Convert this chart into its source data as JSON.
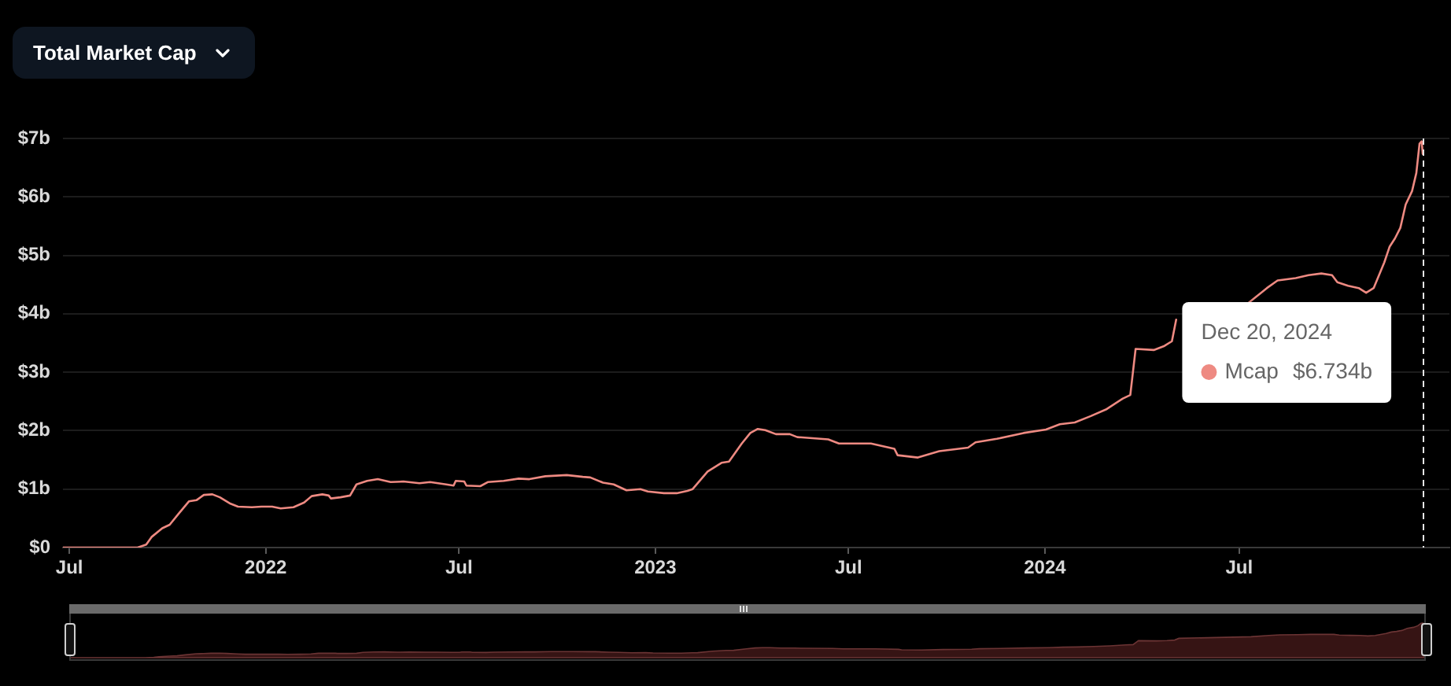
{
  "chart_data": {
    "type": "line",
    "title": "Total Market Cap",
    "x": [
      "2021-06-25",
      "2021-09-03",
      "2021-09-11",
      "2021-09-16",
      "2021-09-26",
      "2021-10-03",
      "2021-10-11",
      "2021-10-21",
      "2021-10-28",
      "2021-11-04",
      "2021-11-12",
      "2021-11-19",
      "2021-11-29",
      "2021-12-06",
      "2021-12-19",
      "2021-12-28",
      "2022-01-07",
      "2022-01-15",
      "2022-01-27",
      "2022-02-06",
      "2022-02-13",
      "2022-02-23",
      "2022-03-01",
      "2022-03-03",
      "2022-03-12",
      "2022-03-21",
      "2022-03-27",
      "2022-04-06",
      "2022-04-16",
      "2022-04-28",
      "2022-05-10",
      "2022-05-25",
      "2022-06-04",
      "2022-06-19",
      "2022-06-26",
      "2022-06-28",
      "2022-07-06",
      "2022-07-08",
      "2022-07-21",
      "2022-07-28",
      "2022-08-12",
      "2022-08-26",
      "2022-09-05",
      "2022-09-20",
      "2022-10-10",
      "2022-10-25",
      "2022-11-01",
      "2022-11-13",
      "2022-11-23",
      "2022-12-05",
      "2022-12-18",
      "2022-12-25",
      "2023-01-09",
      "2023-01-21",
      "2023-01-31",
      "2023-02-05",
      "2023-02-19",
      "2023-03-04",
      "2023-03-11",
      "2023-03-23",
      "2023-03-31",
      "2023-04-07",
      "2023-04-14",
      "2023-04-24",
      "2023-05-07",
      "2023-05-14",
      "2023-06-12",
      "2023-06-22",
      "2023-07-22",
      "2023-08-13",
      "2023-08-16",
      "2023-09-04",
      "2023-09-24",
      "2023-10-21",
      "2023-10-28",
      "2023-11-17",
      "2023-12-12",
      "2024-01-02",
      "2024-01-15",
      "2024-01-29",
      "2024-02-13",
      "2024-02-28",
      "2024-03-14",
      "2024-03-21",
      "2024-03-26",
      "2024-04-12",
      "2024-04-22",
      "2024-04-29",
      "2024-05-03",
      "2024-06-01",
      "2024-07-10",
      "2024-07-27",
      "2024-08-06",
      "2024-08-23",
      "2024-09-04",
      "2024-09-16",
      "2024-09-26",
      "2024-10-01",
      "2024-10-11",
      "2024-10-21",
      "2024-10-28",
      "2024-11-04",
      "2024-11-14",
      "2024-11-19",
      "2024-11-24",
      "2024-11-29",
      "2024-12-04",
      "2024-12-10",
      "2024-12-14",
      "2024-12-17",
      "2024-12-19",
      "2024-12-20"
    ],
    "series": [
      {
        "name": "Mcap",
        "color": "#ee8a82",
        "values": [
          0,
          0,
          0.05,
          0.18,
          0.33,
          0.39,
          0.57,
          0.79,
          0.81,
          0.9,
          0.91,
          0.86,
          0.75,
          0.7,
          0.69,
          0.7,
          0.7,
          0.67,
          0.69,
          0.77,
          0.88,
          0.91,
          0.89,
          0.84,
          0.86,
          0.89,
          1.08,
          1.14,
          1.17,
          1.12,
          1.13,
          1.1,
          1.12,
          1.08,
          1.06,
          1.14,
          1.13,
          1.06,
          1.05,
          1.12,
          1.14,
          1.18,
          1.17,
          1.22,
          1.24,
          1.21,
          1.2,
          1.11,
          1.08,
          0.98,
          1.0,
          0.96,
          0.93,
          0.93,
          0.97,
          1.0,
          1.3,
          1.45,
          1.47,
          1.78,
          1.96,
          2.03,
          2.01,
          1.94,
          1.94,
          1.89,
          1.85,
          1.78,
          1.78,
          1.69,
          1.58,
          1.54,
          1.65,
          1.71,
          1.8,
          1.86,
          1.96,
          2.02,
          2.11,
          2.14,
          2.25,
          2.37,
          2.55,
          2.61,
          3.4,
          3.38,
          3.45,
          3.53,
          3.9,
          null,
          4.19,
          4.44,
          4.57,
          4.61,
          4.66,
          4.69,
          4.66,
          4.54,
          4.48,
          4.44,
          4.36,
          4.44,
          4.88,
          5.15,
          5.29,
          5.47,
          5.87,
          6.1,
          6.41,
          6.91,
          6.95,
          6.734
        ]
      }
    ],
    "xlim": [
      "2021-06-25",
      "2025-01-14"
    ],
    "xticks": [
      {
        "value": "2021-07-01",
        "label": "Jul"
      },
      {
        "value": "2022-01-01",
        "label": "2022"
      },
      {
        "value": "2022-07-01",
        "label": "Jul"
      },
      {
        "value": "2023-01-01",
        "label": "2023"
      },
      {
        "value": "2023-07-01",
        "label": "Jul"
      },
      {
        "value": "2024-01-01",
        "label": "2024"
      },
      {
        "value": "2024-07-01",
        "label": "Jul"
      }
    ],
    "ylim": [
      0,
      7
    ],
    "yticks": [
      {
        "value": 0,
        "label": "$0"
      },
      {
        "value": 1,
        "label": "$1b"
      },
      {
        "value": 2,
        "label": "$2b"
      },
      {
        "value": 3,
        "label": "$3b"
      },
      {
        "value": 4,
        "label": "$4b"
      },
      {
        "value": 5,
        "label": "$5b"
      },
      {
        "value": 6,
        "label": "$6b"
      },
      {
        "value": 7,
        "label": "$7b"
      }
    ],
    "grid": "y",
    "ref_lines": [
      {
        "axis": "x",
        "value": "2024-12-20",
        "color": "#e6e6e6",
        "line_style": "dashed"
      }
    ],
    "annotations": [
      "Dec 20, 2024",
      "$6.734b"
    ]
  }
}
